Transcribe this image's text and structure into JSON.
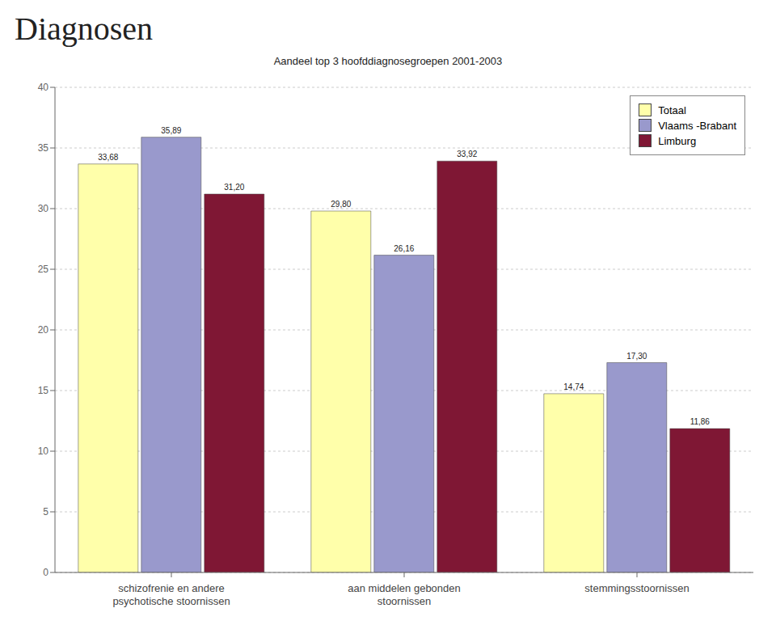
{
  "chart_data": {
    "type": "bar",
    "title": "Diagnosen",
    "subtitle": "Aandeel top 3 hoofddiagnosegroepen 2001-2003",
    "categories": [
      "schizofrenie en andere\npsychotische stoornissen",
      "aan middelen gebonden\nstoornissen",
      "stemmingsstoornissen"
    ],
    "series": [
      {
        "name": "Totaal",
        "color": "#ffffaa",
        "values": [
          33.68,
          29.8,
          14.74
        ],
        "value_labels": [
          "33,68",
          "29,80",
          "14,74"
        ]
      },
      {
        "name": "Vlaams -Brabant",
        "color": "#9999cc",
        "values": [
          35.89,
          26.16,
          17.3
        ],
        "value_labels": [
          "35,89",
          "26,16",
          "17,30"
        ]
      },
      {
        "name": "Limburg",
        "color": "#7f1734",
        "values": [
          31.2,
          33.92,
          11.86
        ],
        "value_labels": [
          "31,20",
          "33,92",
          "11,86"
        ]
      }
    ],
    "ylim": [
      0,
      40
    ],
    "yticks": [
      0,
      5,
      10,
      15,
      20,
      25,
      30,
      35,
      40
    ],
    "grid": true,
    "legend": "upper right",
    "data_labels": true
  }
}
